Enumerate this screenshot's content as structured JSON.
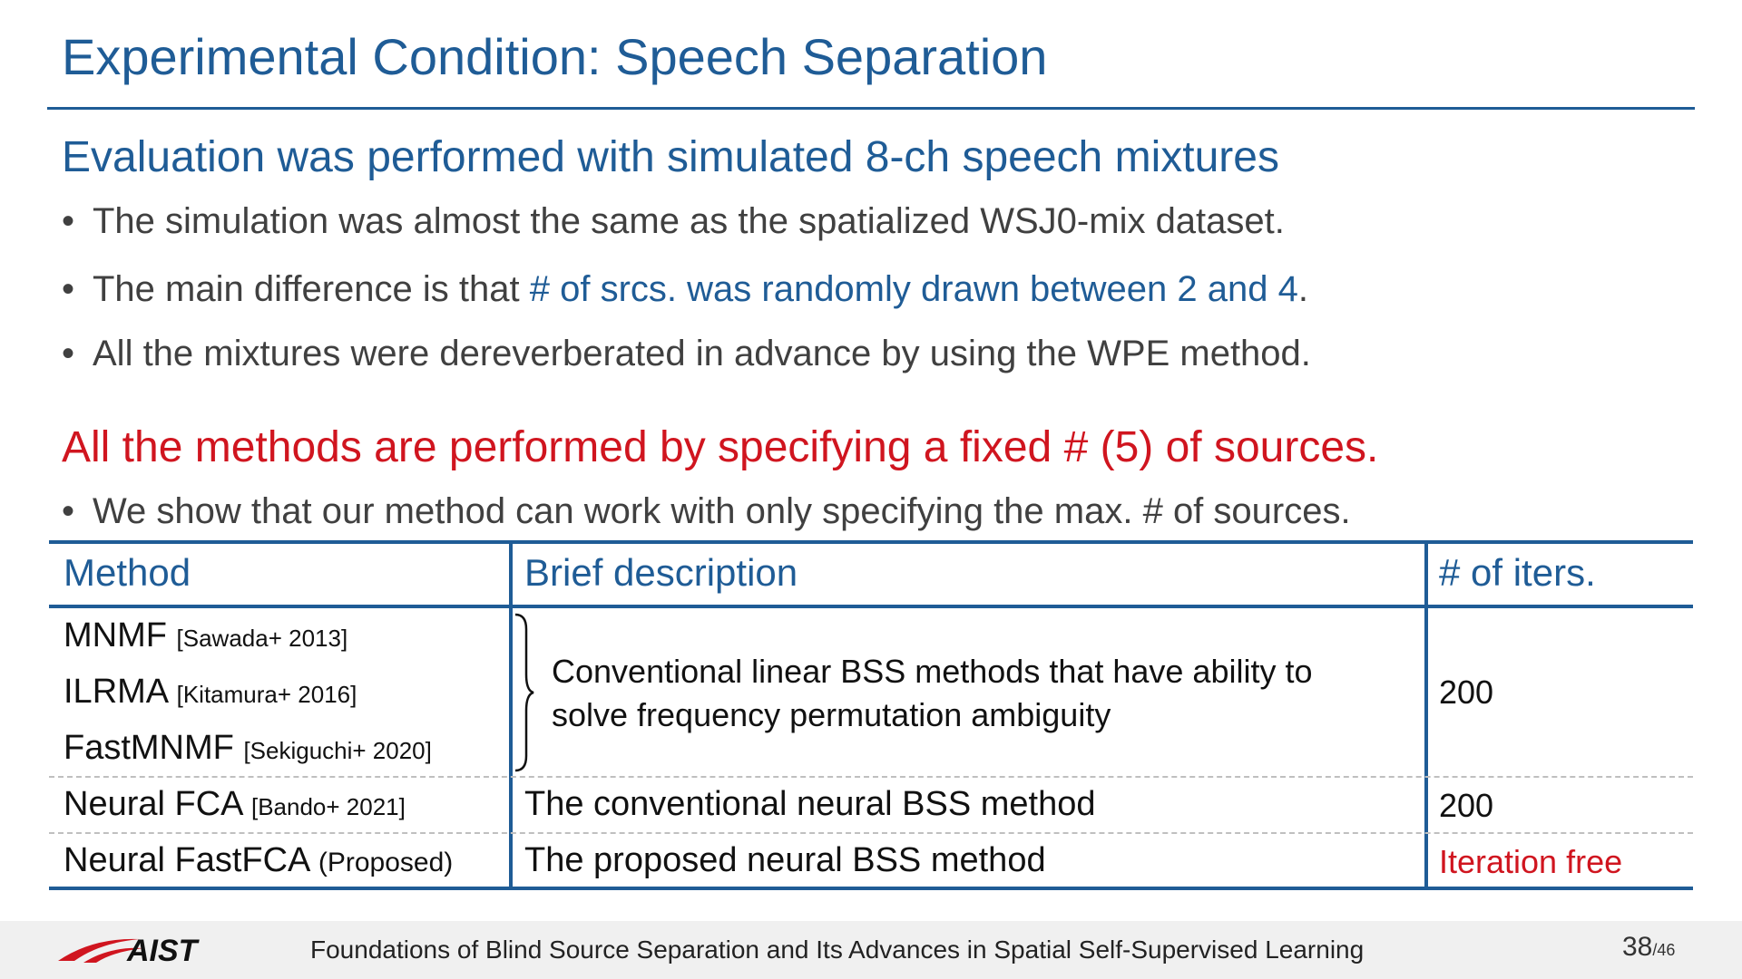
{
  "slide": {
    "title": "Experimental Condition: Speech Separation",
    "section1": {
      "heading": "Evaluation was performed with simulated 8-ch speech mixtures",
      "bullets": [
        {
          "text": "The simulation was almost the same as the spatialized WSJ0-mix dataset."
        },
        {
          "pre": "The main difference is that ",
          "highlight": "# of srcs. was randomly drawn between 2 and 4",
          "post": "."
        },
        {
          "text": "All the mixtures were dereverberated in advance by using the WPE method."
        }
      ]
    },
    "section2": {
      "heading": "All the methods are performed by specifying a fixed # (5) of sources.",
      "bullets": [
        {
          "text": "We show that our method can work with only specifying the max. # of sources."
        }
      ]
    },
    "bullet_symbol": "•",
    "table": {
      "headers": {
        "method": "Method",
        "description": "Brief description",
        "iters": "# of iters."
      },
      "group": {
        "methods": [
          {
            "name": "MNMF",
            "cite": "[Sawada+ 2013]"
          },
          {
            "name": "ILRMA",
            "cite": "[Kitamura+ 2016]"
          },
          {
            "name": "FastMNMF",
            "cite": "[Sekiguchi+ 2020]"
          }
        ],
        "description_lines": [
          "Conventional linear BSS methods that have ability to",
          "solve frequency permutation ambiguity"
        ],
        "iters": "200"
      },
      "rows": [
        {
          "name": "Neural FCA",
          "cite": "[Bando+ 2021]",
          "description": "The conventional neural BSS method",
          "iters": "200"
        },
        {
          "name": "Neural FastFCA",
          "cite": "(Proposed)",
          "description": "The proposed neural BSS method",
          "iters": "Iteration free"
        }
      ]
    }
  },
  "footer": {
    "logo_text": "AIST",
    "text": "Foundations of Blind Source Separation and Its Advances in Spatial Self-Supervised Learning",
    "page": "38",
    "total": "/46"
  },
  "colors": {
    "accent": "#1f5c96",
    "alert": "#d0151f",
    "body": "#404040"
  }
}
